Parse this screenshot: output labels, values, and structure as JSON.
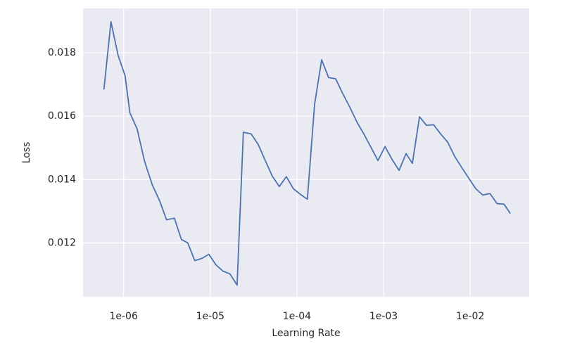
{
  "chart_data": {
    "type": "line",
    "xlabel": "Learning Rate",
    "ylabel": "Loss",
    "x_scale": "log",
    "grid": true,
    "xlim": [
      3.4e-07,
      0.048
    ],
    "ylim": [
      0.0103,
      0.0194
    ],
    "xticks": [
      {
        "value": 1e-06,
        "label": "1e-06"
      },
      {
        "value": 1e-05,
        "label": "1e-05"
      },
      {
        "value": 0.0001,
        "label": "1e-04"
      },
      {
        "value": 0.001,
        "label": "1e-03"
      },
      {
        "value": 0.01,
        "label": "1e-02"
      }
    ],
    "yticks": [
      0.012,
      0.014,
      0.016,
      0.018
    ],
    "x": [
      5.92e-07,
      7.14e-07,
      8.61e-07,
      1.04e-06,
      1.18e-06,
      1.43e-06,
      1.75e-06,
      2.15e-06,
      2.6e-06,
      3.13e-06,
      3.85e-06,
      4.64e-06,
      5.5e-06,
      6.62e-06,
      7.98e-06,
      9.64e-06,
      1.16e-05,
      1.4e-05,
      1.69e-05,
      2.04e-05,
      2.41e-05,
      2.96e-05,
      3.57e-05,
      4.31e-05,
      5.19e-05,
      6.26e-05,
      7.55e-05,
      9.1e-05,
      0.00011,
      0.000132,
      0.00016,
      0.000193,
      0.000232,
      0.00028,
      0.000338,
      0.000407,
      0.000491,
      0.000592,
      0.000714,
      0.000861,
      0.00104,
      0.00125,
      0.00151,
      0.00182,
      0.00215,
      0.0026,
      0.00313,
      0.00378,
      0.00456,
      0.0055,
      0.00662,
      0.00798,
      0.00964,
      0.0116,
      0.014,
      0.0169,
      0.0204,
      0.0246,
      0.029
    ],
    "series": [
      {
        "color": "#4c72b0",
        "values": [
          0.01684,
          0.01898,
          0.01793,
          0.01727,
          0.01611,
          0.0156,
          0.01456,
          0.01382,
          0.01333,
          0.01273,
          0.01278,
          0.01211,
          0.012,
          0.01144,
          0.01151,
          0.01164,
          0.01131,
          0.01111,
          0.01102,
          0.01067,
          0.01549,
          0.01544,
          0.01511,
          0.0146,
          0.01411,
          0.01378,
          0.01409,
          0.01371,
          0.01353,
          0.01338,
          0.01638,
          0.01778,
          0.01722,
          0.01718,
          0.01671,
          0.01629,
          0.01582,
          0.01544,
          0.01502,
          0.0146,
          0.01504,
          0.01464,
          0.01429,
          0.01482,
          0.01451,
          0.01598,
          0.01571,
          0.01573,
          0.01544,
          0.01518,
          0.01473,
          0.01438,
          0.01404,
          0.01371,
          0.01351,
          0.01356,
          0.01324,
          0.01322,
          0.01293
        ]
      }
    ]
  }
}
